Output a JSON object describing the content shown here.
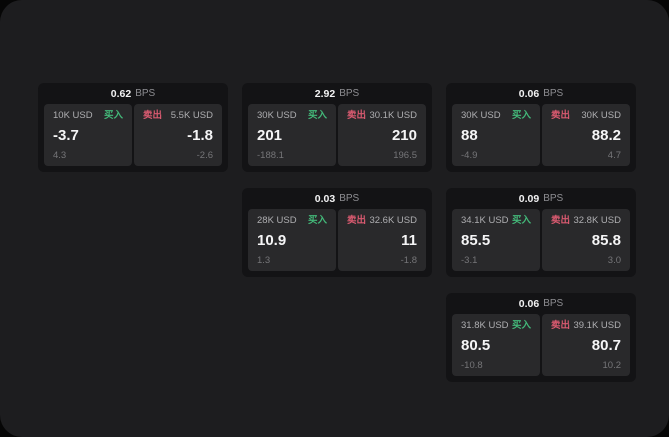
{
  "labels": {
    "buy": "买入",
    "sell": "卖出",
    "bps_unit": "BPS"
  },
  "colors": {
    "panel_bg": "#1d1d1f",
    "card_bg": "#131315",
    "subpanel_bg": "#29292b",
    "buy_green": "#43b879",
    "sell_red": "#d95a70",
    "value_white": "#f5f5f6",
    "label_gray": "#aeaeb1",
    "sub_gray": "#757578"
  },
  "cards": [
    {
      "bps": "0.62",
      "buy": {
        "amount": "10K USD",
        "value": "-3.7",
        "sub": "4.3"
      },
      "sell": {
        "amount": "5.5K USD",
        "value": "-1.8",
        "sub": "-2.6"
      }
    },
    {
      "bps": "2.92",
      "buy": {
        "amount": "30K USD",
        "value": "201",
        "sub": "-188.1"
      },
      "sell": {
        "amount": "30.1K USD",
        "value": "210",
        "sub": "196.5"
      }
    },
    {
      "bps": "0.06",
      "buy": {
        "amount": "30K USD",
        "value": "88",
        "sub": "-4.9"
      },
      "sell": {
        "amount": "30K USD",
        "value": "88.2",
        "sub": "4.7"
      }
    },
    {
      "bps": "0.03",
      "buy": {
        "amount": "28K USD",
        "value": "10.9",
        "sub": "1.3"
      },
      "sell": {
        "amount": "32.6K USD",
        "value": "11",
        "sub": "-1.8"
      }
    },
    {
      "bps": "0.09",
      "buy": {
        "amount": "34.1K USD",
        "value": "85.5",
        "sub": "-3.1"
      },
      "sell": {
        "amount": "32.8K USD",
        "value": "85.8",
        "sub": "3.0"
      }
    },
    {
      "bps": "0.06",
      "buy": {
        "amount": "31.8K USD",
        "value": "80.5",
        "sub": "-10.8"
      },
      "sell": {
        "amount": "39.1K USD",
        "value": "80.7",
        "sub": "10.2"
      }
    }
  ]
}
